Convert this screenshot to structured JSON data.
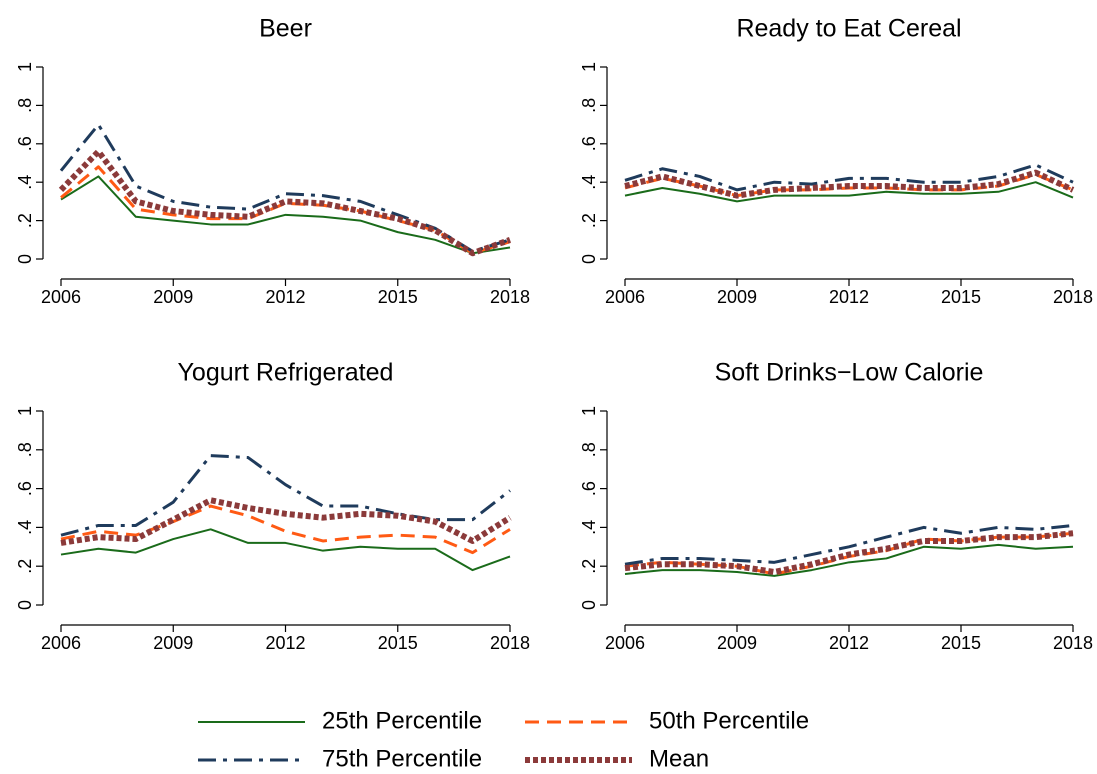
{
  "chart_data": [
    {
      "type": "line",
      "title": "Beer",
      "x": [
        2006,
        2007,
        2008,
        2009,
        2010,
        2011,
        2012,
        2013,
        2014,
        2015,
        2016,
        2017,
        2018
      ],
      "xlim": [
        2006,
        2018
      ],
      "xticks": [
        2006,
        2009,
        2012,
        2015,
        2018
      ],
      "ylim": [
        0,
        1
      ],
      "yticks": [
        0,
        {
          "value": 0.2,
          "label": ".2"
        },
        {
          "value": 0.4,
          "label": ".4"
        },
        {
          "value": 0.6,
          "label": ".6"
        },
        {
          "value": 0.8,
          "label": ".8"
        },
        1
      ],
      "series": [
        {
          "name": "25th Percentile",
          "color": "#1a6b1a",
          "style": "solid",
          "values": [
            0.31,
            0.43,
            0.22,
            0.2,
            0.18,
            0.18,
            0.23,
            0.22,
            0.2,
            0.14,
            0.1,
            0.03,
            0.06
          ]
        },
        {
          "name": "50th Percentile",
          "color": "#ff5a14",
          "style": "dash",
          "values": [
            0.32,
            0.48,
            0.26,
            0.23,
            0.21,
            0.21,
            0.29,
            0.28,
            0.25,
            0.2,
            0.15,
            0.03,
            0.09
          ]
        },
        {
          "name": "75th Percentile",
          "color": "#1f3b5c",
          "style": "dashdot",
          "values": [
            0.46,
            0.7,
            0.38,
            0.3,
            0.27,
            0.26,
            0.34,
            0.33,
            0.3,
            0.23,
            0.16,
            0.04,
            0.1
          ]
        },
        {
          "name": "Mean",
          "color": "#8b3a3a",
          "style": "dot",
          "values": [
            0.36,
            0.56,
            0.3,
            0.25,
            0.23,
            0.22,
            0.3,
            0.29,
            0.25,
            0.21,
            0.15,
            0.03,
            0.1
          ]
        }
      ]
    },
    {
      "type": "line",
      "title": "Ready to Eat Cereal",
      "x": [
        2006,
        2007,
        2008,
        2009,
        2010,
        2011,
        2012,
        2013,
        2014,
        2015,
        2016,
        2017,
        2018
      ],
      "xlim": [
        2006,
        2018
      ],
      "xticks": [
        2006,
        2009,
        2012,
        2015,
        2018
      ],
      "ylim": [
        0,
        1
      ],
      "yticks": [
        0,
        {
          "value": 0.2,
          "label": ".2"
        },
        {
          "value": 0.4,
          "label": ".4"
        },
        {
          "value": 0.6,
          "label": ".6"
        },
        {
          "value": 0.8,
          "label": ".8"
        },
        1
      ],
      "series": [
        {
          "color": "#1a6b1a",
          "style": "solid",
          "values": [
            0.33,
            0.37,
            0.34,
            0.3,
            0.33,
            0.33,
            0.33,
            0.35,
            0.34,
            0.34,
            0.35,
            0.4,
            0.32
          ]
        },
        {
          "color": "#ff5a14",
          "style": "dash",
          "values": [
            0.37,
            0.42,
            0.38,
            0.33,
            0.36,
            0.36,
            0.37,
            0.37,
            0.36,
            0.36,
            0.38,
            0.44,
            0.36
          ]
        },
        {
          "color": "#1f3b5c",
          "style": "dashdot",
          "values": [
            0.41,
            0.47,
            0.43,
            0.36,
            0.4,
            0.39,
            0.42,
            0.42,
            0.4,
            0.4,
            0.43,
            0.49,
            0.4
          ]
        },
        {
          "color": "#8b3a3a",
          "style": "dot",
          "values": [
            0.38,
            0.43,
            0.38,
            0.33,
            0.36,
            0.37,
            0.38,
            0.38,
            0.37,
            0.37,
            0.39,
            0.45,
            0.36
          ]
        }
      ]
    },
    {
      "type": "line",
      "title": "Yogurt Refrigerated",
      "x": [
        2006,
        2007,
        2008,
        2009,
        2010,
        2011,
        2012,
        2013,
        2014,
        2015,
        2016,
        2017,
        2018
      ],
      "xlim": [
        2006,
        2018
      ],
      "xticks": [
        2006,
        2009,
        2012,
        2015,
        2018
      ],
      "ylim": [
        0,
        1
      ],
      "yticks": [
        0,
        {
          "value": 0.2,
          "label": ".2"
        },
        {
          "value": 0.4,
          "label": ".4"
        },
        {
          "value": 0.6,
          "label": ".6"
        },
        {
          "value": 0.8,
          "label": ".8"
        },
        1
      ],
      "series": [
        {
          "color": "#1a6b1a",
          "style": "solid",
          "values": [
            0.26,
            0.29,
            0.27,
            0.34,
            0.39,
            0.32,
            0.32,
            0.28,
            0.3,
            0.29,
            0.29,
            0.18,
            0.25
          ]
        },
        {
          "color": "#ff5a14",
          "style": "dash",
          "values": [
            0.34,
            0.38,
            0.36,
            0.43,
            0.51,
            0.46,
            0.38,
            0.33,
            0.35,
            0.36,
            0.35,
            0.27,
            0.39
          ]
        },
        {
          "color": "#1f3b5c",
          "style": "dashdot",
          "values": [
            0.36,
            0.41,
            0.41,
            0.53,
            0.77,
            0.76,
            0.62,
            0.51,
            0.51,
            0.47,
            0.44,
            0.44,
            0.59
          ]
        },
        {
          "color": "#8b3a3a",
          "style": "dot",
          "values": [
            0.32,
            0.35,
            0.34,
            0.44,
            0.54,
            0.5,
            0.47,
            0.45,
            0.47,
            0.46,
            0.43,
            0.33,
            0.45
          ]
        }
      ]
    },
    {
      "type": "line",
      "title": "Soft Drinks−Low Calorie",
      "x": [
        2006,
        2007,
        2008,
        2009,
        2010,
        2011,
        2012,
        2013,
        2014,
        2015,
        2016,
        2017,
        2018
      ],
      "xlim": [
        2006,
        2018
      ],
      "xticks": [
        2006,
        2009,
        2012,
        2015,
        2018
      ],
      "ylim": [
        0,
        1
      ],
      "yticks": [
        0,
        {
          "value": 0.2,
          "label": ".2"
        },
        {
          "value": 0.4,
          "label": ".4"
        },
        {
          "value": 0.6,
          "label": ".6"
        },
        {
          "value": 0.8,
          "label": ".8"
        },
        1
      ],
      "series": [
        {
          "color": "#1a6b1a",
          "style": "solid",
          "values": [
            0.16,
            0.18,
            0.18,
            0.17,
            0.15,
            0.18,
            0.22,
            0.24,
            0.3,
            0.29,
            0.31,
            0.29,
            0.3
          ]
        },
        {
          "color": "#ff5a14",
          "style": "dash",
          "values": [
            0.2,
            0.22,
            0.21,
            0.2,
            0.16,
            0.2,
            0.25,
            0.28,
            0.34,
            0.33,
            0.35,
            0.35,
            0.37
          ]
        },
        {
          "color": "#1f3b5c",
          "style": "dashdot",
          "values": [
            0.21,
            0.24,
            0.24,
            0.23,
            0.22,
            0.26,
            0.3,
            0.35,
            0.4,
            0.37,
            0.4,
            0.39,
            0.41
          ]
        },
        {
          "color": "#8b3a3a",
          "style": "dot",
          "values": [
            0.19,
            0.21,
            0.21,
            0.2,
            0.17,
            0.21,
            0.26,
            0.29,
            0.33,
            0.33,
            0.35,
            0.35,
            0.37
          ]
        }
      ]
    }
  ]
}
